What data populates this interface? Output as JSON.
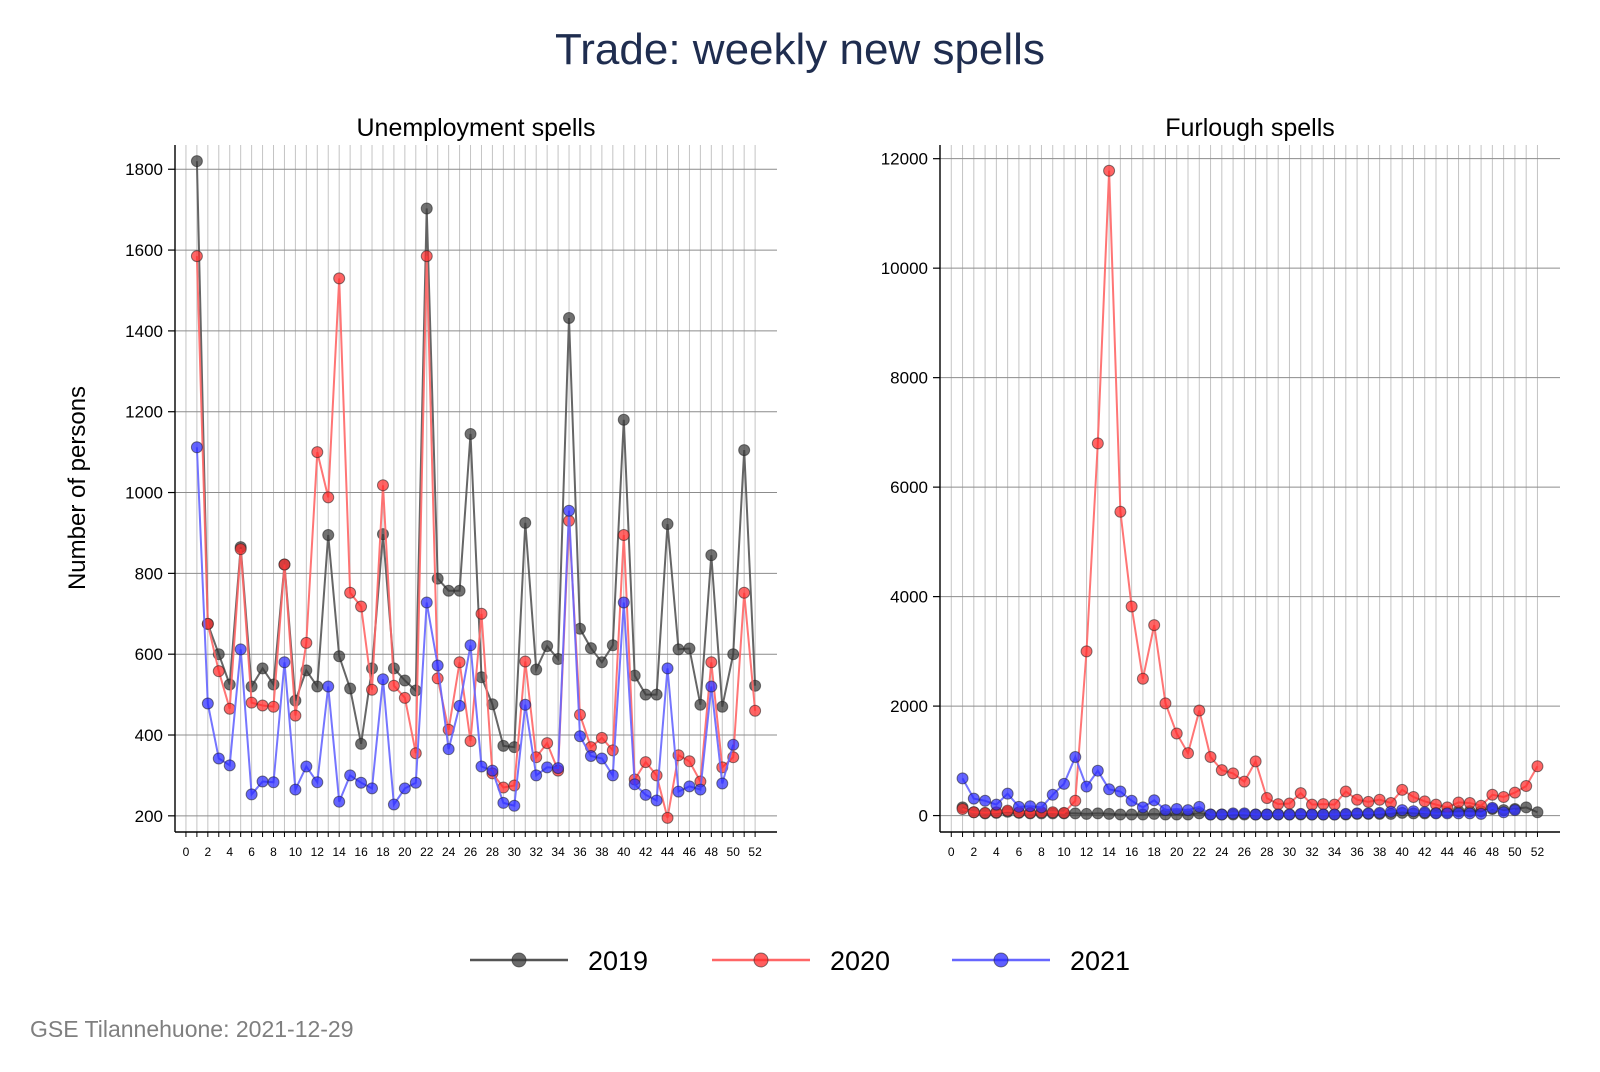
{
  "title": "Trade: weekly new spells",
  "credit": "GSE Tilannehuone: 2021-12-29",
  "ylabel": "Number of persons",
  "series_colors": {
    "2019": "#3a3a3a",
    "2020": "#ff2a2a",
    "2021": "#2a2aff"
  },
  "legend": [
    "2019",
    "2020",
    "2021"
  ],
  "chart_data": [
    {
      "type": "line",
      "title": "Unemployment spells",
      "xlabel": "",
      "ylabel": "Number of persons",
      "ylim": [
        160,
        1860
      ],
      "xlim": [
        -1,
        54
      ],
      "yticks": [
        200,
        400,
        600,
        800,
        1000,
        1200,
        1400,
        1600,
        1800
      ],
      "xticks": [
        0,
        2,
        4,
        6,
        8,
        10,
        12,
        14,
        16,
        18,
        20,
        22,
        24,
        26,
        28,
        30,
        32,
        34,
        36,
        38,
        40,
        42,
        44,
        46,
        48,
        50,
        52
      ],
      "grid": true,
      "series": [
        {
          "name": "2019",
          "x": [
            1,
            2,
            3,
            4,
            5,
            6,
            7,
            8,
            9,
            10,
            11,
            12,
            13,
            14,
            15,
            16,
            17,
            18,
            19,
            20,
            21,
            22,
            23,
            24,
            25,
            26,
            27,
            28,
            29,
            30,
            31,
            32,
            33,
            34,
            35,
            36,
            37,
            38,
            39,
            40,
            41,
            42,
            43,
            44,
            45,
            46,
            47,
            48,
            49,
            50,
            51,
            52
          ],
          "values": [
            1820,
            675,
            600,
            525,
            865,
            520,
            565,
            525,
            822,
            485,
            560,
            520,
            895,
            595,
            515,
            378,
            565,
            897,
            565,
            535,
            510,
            1703,
            787,
            757,
            757,
            1145,
            543,
            476,
            373,
            370,
            925,
            562,
            620,
            588,
            1432,
            663,
            615,
            580,
            622,
            1180,
            547,
            500,
            500,
            922,
            612,
            614,
            475,
            845,
            470,
            600,
            1105,
            522
          ]
        },
        {
          "name": "2020",
          "x": [
            1,
            2,
            3,
            4,
            5,
            6,
            7,
            8,
            9,
            10,
            11,
            12,
            13,
            14,
            15,
            16,
            17,
            18,
            19,
            20,
            21,
            22,
            23,
            24,
            25,
            26,
            27,
            28,
            29,
            30,
            31,
            32,
            33,
            34,
            35,
            36,
            37,
            38,
            39,
            40,
            41,
            42,
            43,
            44,
            45,
            46,
            47,
            48,
            49,
            50,
            51,
            52
          ],
          "values": [
            1585,
            675,
            558,
            465,
            860,
            480,
            473,
            470,
            822,
            448,
            628,
            1100,
            988,
            1530,
            752,
            718,
            512,
            1018,
            522,
            492,
            355,
            1585,
            540,
            413,
            580,
            385,
            700,
            305,
            270,
            275,
            582,
            345,
            380,
            312,
            930,
            450,
            370,
            393,
            362,
            895,
            290,
            333,
            300,
            195,
            350,
            335,
            285,
            580,
            320,
            345,
            752,
            460
          ]
        },
        {
          "name": "2021",
          "x": [
            1,
            2,
            3,
            4,
            5,
            6,
            7,
            8,
            9,
            10,
            11,
            12,
            13,
            14,
            15,
            16,
            17,
            18,
            19,
            20,
            21,
            22,
            23,
            24,
            25,
            26,
            27,
            28,
            29,
            30,
            31,
            32,
            33,
            34,
            35,
            36,
            37,
            38,
            39,
            40,
            41,
            42,
            43,
            44,
            45,
            46,
            47,
            48,
            49,
            50
          ],
          "values": [
            1112,
            478,
            342,
            325,
            612,
            253,
            285,
            283,
            580,
            265,
            322,
            283,
            520,
            235,
            300,
            282,
            268,
            538,
            228,
            268,
            282,
            728,
            572,
            365,
            472,
            622,
            322,
            312,
            232,
            225,
            475,
            300,
            320,
            318,
            955,
            397,
            348,
            342,
            300,
            728,
            278,
            252,
            238,
            565,
            260,
            273,
            265,
            520,
            280,
            376
          ]
        }
      ]
    },
    {
      "type": "line",
      "title": "Furlough spells",
      "xlabel": "",
      "ylabel": "",
      "ylim": [
        -300,
        12250
      ],
      "xlim": [
        -1,
        54
      ],
      "yticks": [
        0,
        2000,
        4000,
        6000,
        8000,
        10000,
        12000
      ],
      "xticks": [
        0,
        2,
        4,
        6,
        8,
        10,
        12,
        14,
        16,
        18,
        20,
        22,
        24,
        26,
        28,
        30,
        32,
        34,
        36,
        38,
        40,
        42,
        44,
        46,
        48,
        50,
        52
      ],
      "grid": true,
      "series": [
        {
          "name": "2019",
          "x": [
            1,
            2,
            3,
            4,
            5,
            6,
            7,
            8,
            9,
            10,
            11,
            12,
            13,
            14,
            15,
            16,
            17,
            18,
            19,
            20,
            21,
            22,
            23,
            24,
            25,
            26,
            27,
            28,
            29,
            30,
            31,
            32,
            33,
            34,
            35,
            36,
            37,
            38,
            39,
            40,
            41,
            42,
            43,
            44,
            45,
            46,
            47,
            48,
            49,
            50,
            51,
            52
          ],
          "values": [
            150,
            60,
            40,
            50,
            70,
            50,
            40,
            40,
            40,
            40,
            40,
            30,
            40,
            30,
            20,
            20,
            20,
            30,
            20,
            20,
            20,
            40,
            20,
            20,
            20,
            20,
            20,
            20,
            20,
            20,
            20,
            20,
            20,
            20,
            20,
            30,
            30,
            30,
            30,
            50,
            40,
            40,
            50,
            60,
            80,
            80,
            80,
            120,
            100,
            120,
            150,
            60
          ]
        },
        {
          "name": "2020",
          "x": [
            1,
            2,
            3,
            4,
            5,
            6,
            7,
            8,
            9,
            10,
            11,
            12,
            13,
            14,
            15,
            16,
            17,
            18,
            19,
            20,
            21,
            22,
            23,
            24,
            25,
            26,
            27,
            28,
            29,
            30,
            31,
            32,
            33,
            34,
            35,
            36,
            37,
            38,
            39,
            40,
            41,
            42,
            43,
            44,
            45,
            46,
            47,
            48,
            49,
            50,
            51,
            52
          ],
          "values": [
            120,
            60,
            50,
            60,
            90,
            60,
            50,
            60,
            60,
            50,
            270,
            3000,
            6800,
            11780,
            5550,
            3820,
            2500,
            3480,
            2050,
            1500,
            1140,
            1920,
            1070,
            830,
            770,
            620,
            990,
            320,
            210,
            220,
            410,
            200,
            210,
            200,
            440,
            290,
            250,
            290,
            230,
            470,
            340,
            260,
            200,
            150,
            240,
            230,
            180,
            380,
            340,
            420,
            540,
            900
          ]
        },
        {
          "name": "2021",
          "x": [
            1,
            2,
            3,
            4,
            5,
            6,
            7,
            8,
            9,
            10,
            11,
            12,
            13,
            14,
            15,
            16,
            17,
            18,
            19,
            20,
            21,
            22,
            23,
            24,
            25,
            26,
            27,
            28,
            29,
            30,
            31,
            32,
            33,
            34,
            35,
            36,
            37,
            38,
            39,
            40,
            41,
            42,
            43,
            44,
            45,
            46,
            47,
            48,
            49,
            50
          ],
          "values": [
            680,
            310,
            270,
            200,
            400,
            160,
            170,
            150,
            380,
            580,
            1070,
            530,
            820,
            480,
            440,
            270,
            150,
            280,
            100,
            120,
            100,
            160,
            20,
            20,
            40,
            40,
            20,
            20,
            20,
            20,
            30,
            20,
            20,
            20,
            30,
            40,
            40,
            50,
            70,
            100,
            80,
            60,
            40,
            40,
            40,
            40,
            30,
            140,
            60,
            100
          ]
        }
      ]
    }
  ]
}
